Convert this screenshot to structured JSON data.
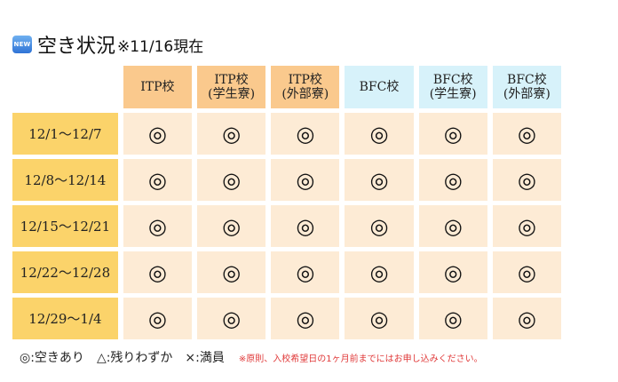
{
  "header": {
    "badge": "NEW",
    "title": "空き状況",
    "note": "※11/16現在"
  },
  "columns": [
    {
      "label": "ITP校",
      "school": "itp"
    },
    {
      "label": "ITP校\n(学生寮)",
      "school": "itp"
    },
    {
      "label": "ITP校\n(外部寮)",
      "school": "itp"
    },
    {
      "label": "BFC校",
      "school": "bfc"
    },
    {
      "label": "BFC校\n(学生寮)",
      "school": "bfc"
    },
    {
      "label": "BFC校\n(外部寮)",
      "school": "bfc"
    }
  ],
  "rows": [
    {
      "period": "12/1～12/7",
      "values": [
        "◎",
        "◎",
        "◎",
        "◎",
        "◎",
        "◎"
      ]
    },
    {
      "period": "12/8～12/14",
      "values": [
        "◎",
        "◎",
        "◎",
        "◎",
        "◎",
        "◎"
      ]
    },
    {
      "period": "12/15～12/21",
      "values": [
        "◎",
        "◎",
        "◎",
        "◎",
        "◎",
        "◎"
      ]
    },
    {
      "period": "12/22～12/28",
      "values": [
        "◎",
        "◎",
        "◎",
        "◎",
        "◎",
        "◎"
      ]
    },
    {
      "period": "12/29～1/4",
      "values": [
        "◎",
        "◎",
        "◎",
        "◎",
        "◎",
        "◎"
      ]
    }
  ],
  "legend": {
    "available": "◎:空きあり",
    "few": "△:残りわずか",
    "full": "×:満員",
    "note": "※原則、入校希望日の1ヶ月前までにはお申し込みください。"
  },
  "colors": {
    "itp_header": "#fac98d",
    "bfc_header": "#d7f2fa",
    "row_label": "#fbd36a",
    "cell": "#fdebd5",
    "note": "#e03a3a"
  }
}
